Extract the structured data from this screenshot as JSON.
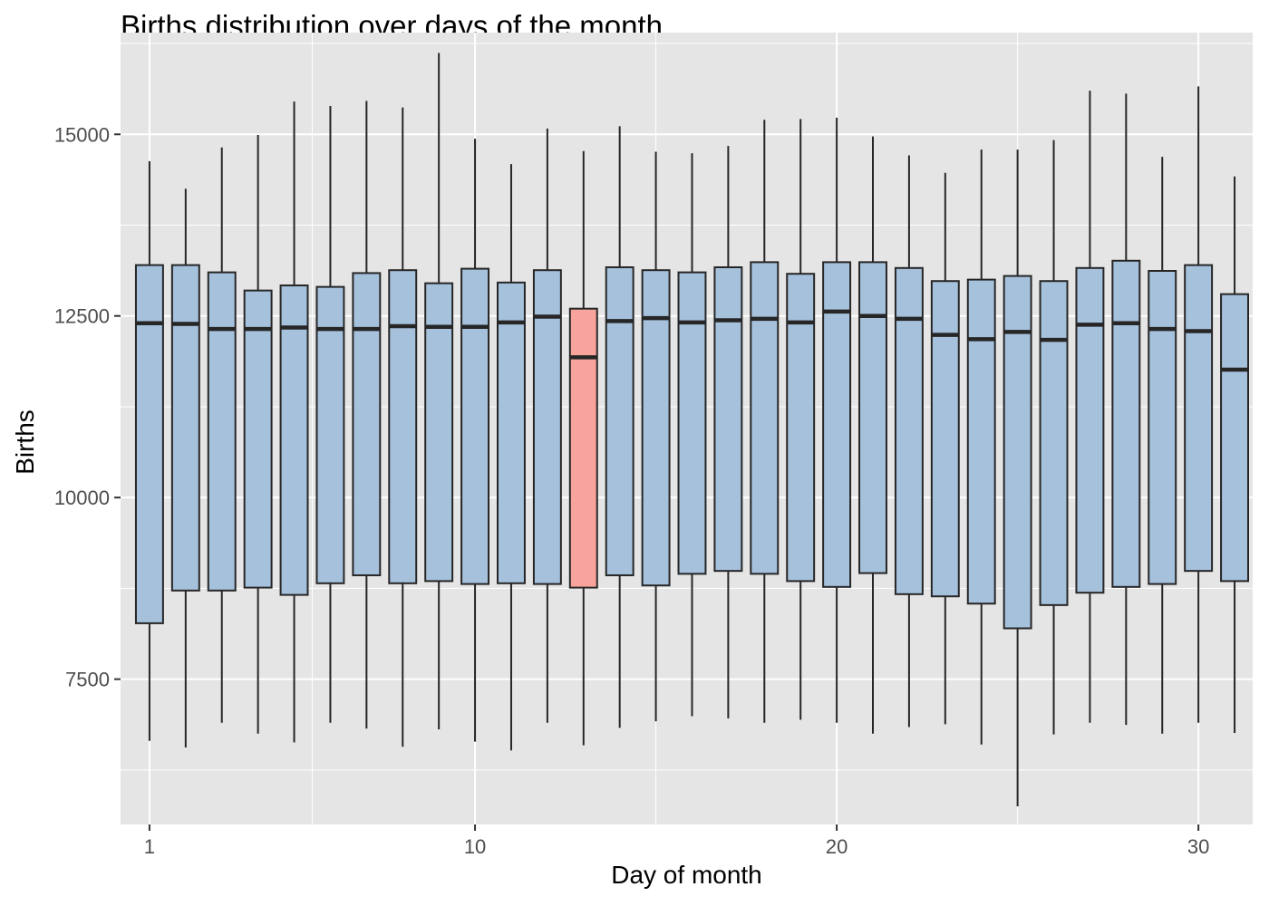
{
  "chart_data": {
    "type": "boxplot",
    "title": "Births distribution over days of the month",
    "xlabel": "Day of month",
    "ylabel": "Births",
    "xlim": [
      0.2,
      31.5
    ],
    "ylim": [
      5500,
      16400
    ],
    "x_ticks": [
      1,
      10,
      20,
      30
    ],
    "y_ticks": [
      7500,
      10000,
      12500,
      15000
    ],
    "grid": true,
    "colors": {
      "panel": "#e5e5e5",
      "grid": "#ffffff",
      "box_fill": "#a6c1dc",
      "highlight_fill": "#f8a49d",
      "stroke": "#262626",
      "tick_label": "#4d4d4d"
    },
    "highlight_day": 13,
    "boxes": [
      {
        "day": 1,
        "min": 6650,
        "q1": 8270,
        "median": 12400,
        "q3": 13200,
        "max": 14630
      },
      {
        "day": 2,
        "min": 6560,
        "q1": 8720,
        "median": 12390,
        "q3": 13200,
        "max": 14250
      },
      {
        "day": 3,
        "min": 6900,
        "q1": 8720,
        "median": 12320,
        "q3": 13100,
        "max": 14820
      },
      {
        "day": 4,
        "min": 6750,
        "q1": 8760,
        "median": 12320,
        "q3": 12850,
        "max": 14990
      },
      {
        "day": 5,
        "min": 6630,
        "q1": 8660,
        "median": 12340,
        "q3": 12920,
        "max": 15450
      },
      {
        "day": 6,
        "min": 6900,
        "q1": 8820,
        "median": 12320,
        "q3": 12900,
        "max": 15390
      },
      {
        "day": 7,
        "min": 6820,
        "q1": 8930,
        "median": 12320,
        "q3": 13090,
        "max": 15460
      },
      {
        "day": 8,
        "min": 6570,
        "q1": 8820,
        "median": 12360,
        "q3": 13130,
        "max": 15370
      },
      {
        "day": 9,
        "min": 6810,
        "q1": 8850,
        "median": 12350,
        "q3": 12950,
        "max": 16120
      },
      {
        "day": 10,
        "min": 6640,
        "q1": 8810,
        "median": 12350,
        "q3": 13150,
        "max": 14940
      },
      {
        "day": 11,
        "min": 6520,
        "q1": 8820,
        "median": 12410,
        "q3": 12960,
        "max": 14590
      },
      {
        "day": 12,
        "min": 6900,
        "q1": 8810,
        "median": 12490,
        "q3": 13130,
        "max": 15080
      },
      {
        "day": 13,
        "min": 6590,
        "q1": 8760,
        "median": 11930,
        "q3": 12600,
        "max": 14770
      },
      {
        "day": 14,
        "min": 6830,
        "q1": 8930,
        "median": 12430,
        "q3": 13170,
        "max": 15110
      },
      {
        "day": 15,
        "min": 6920,
        "q1": 8790,
        "median": 12470,
        "q3": 13130,
        "max": 14760
      },
      {
        "day": 16,
        "min": 6990,
        "q1": 8950,
        "median": 12410,
        "q3": 13100,
        "max": 14740
      },
      {
        "day": 17,
        "min": 6960,
        "q1": 8990,
        "median": 12440,
        "q3": 13170,
        "max": 14840
      },
      {
        "day": 18,
        "min": 6900,
        "q1": 8950,
        "median": 12460,
        "q3": 13240,
        "max": 15200
      },
      {
        "day": 19,
        "min": 6940,
        "q1": 8850,
        "median": 12410,
        "q3": 13080,
        "max": 15210
      },
      {
        "day": 20,
        "min": 6900,
        "q1": 8770,
        "median": 12560,
        "q3": 13240,
        "max": 15230
      },
      {
        "day": 21,
        "min": 6750,
        "q1": 8960,
        "median": 12500,
        "q3": 13240,
        "max": 14970
      },
      {
        "day": 22,
        "min": 6840,
        "q1": 8670,
        "median": 12460,
        "q3": 13160,
        "max": 14710
      },
      {
        "day": 23,
        "min": 6880,
        "q1": 8640,
        "median": 12240,
        "q3": 12980,
        "max": 14470
      },
      {
        "day": 24,
        "min": 6600,
        "q1": 8540,
        "median": 12180,
        "q3": 13000,
        "max": 14790
      },
      {
        "day": 25,
        "min": 5750,
        "q1": 8200,
        "median": 12280,
        "q3": 13050,
        "max": 14790
      },
      {
        "day": 26,
        "min": 6740,
        "q1": 8520,
        "median": 12170,
        "q3": 12980,
        "max": 14920
      },
      {
        "day": 27,
        "min": 6900,
        "q1": 8690,
        "median": 12380,
        "q3": 13160,
        "max": 15600
      },
      {
        "day": 28,
        "min": 6870,
        "q1": 8770,
        "median": 12400,
        "q3": 13260,
        "max": 15560
      },
      {
        "day": 29,
        "min": 6750,
        "q1": 8810,
        "median": 12320,
        "q3": 13120,
        "max": 14690
      },
      {
        "day": 30,
        "min": 6900,
        "q1": 8990,
        "median": 12290,
        "q3": 13200,
        "max": 15660
      },
      {
        "day": 31,
        "min": 6760,
        "q1": 8850,
        "median": 11760,
        "q3": 12800,
        "max": 14420
      }
    ]
  }
}
